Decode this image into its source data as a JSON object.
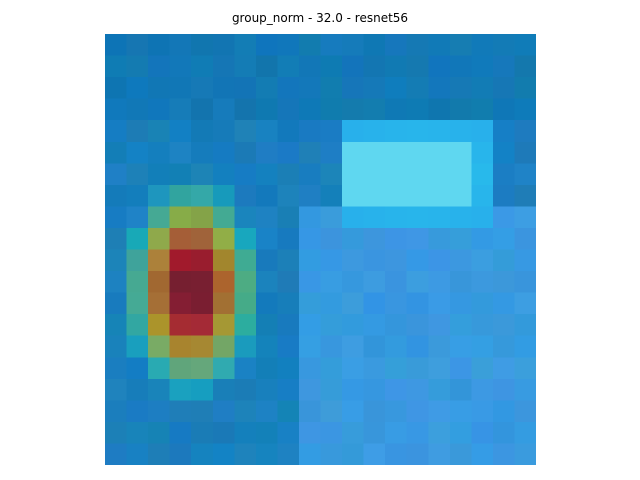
{
  "figure": {
    "title": "group_norm - 32.0 - resnet56"
  },
  "image": {
    "description_icon": "grad-cam-heatmap-overlay",
    "grid_size": 20
  }
}
